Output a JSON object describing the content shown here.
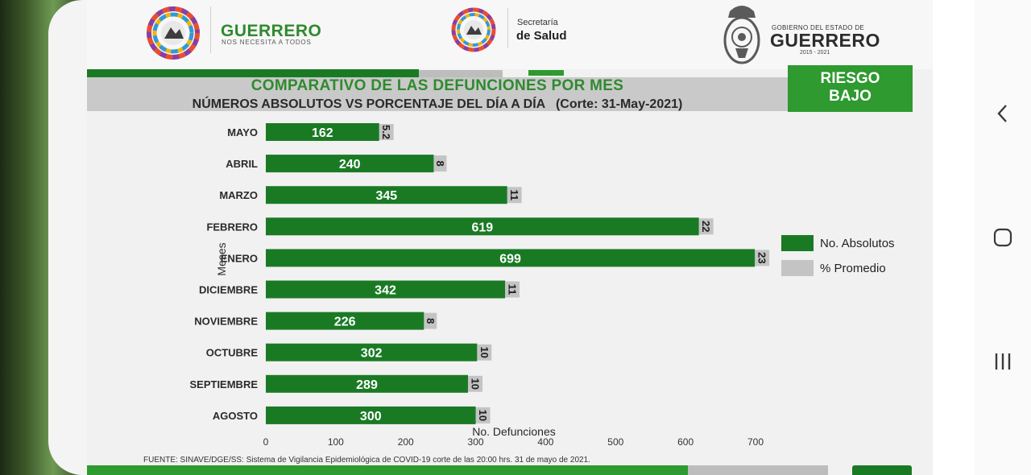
{
  "header": {
    "brand_title": "GUERRERO",
    "brand_subtitle": "NOS NECESITA A TODOS",
    "secretaria_small": "Secretaría",
    "secretaria_big": "de Salud",
    "gobierno_small": "GOBIERNO DEL ESTADO DE",
    "gobierno_big": "GUERRERO",
    "gobierno_years": "2015 - 2021"
  },
  "risk_badge": {
    "line1": "RIESGO",
    "line2": "BAJO"
  },
  "colors": {
    "absolutos": "#1a7a24",
    "promedio": "#c4c4c4",
    "title_green": "#2f8a2e",
    "badge_green": "#2e9a2f"
  },
  "nav": {
    "back_icon": "chevron-left-icon",
    "home_icon": "home-icon",
    "recents_icon": "recents-icon"
  },
  "source": "FUENTE: SINAVE/DGE/SS: Sistema de Vigilancia Epidemiológica de COVID-19 corte de las 20:00 hrs. 31 de mayo  de 2021.",
  "chart_data": {
    "type": "bar",
    "orientation": "horizontal",
    "title": "COMPARATIVO DE LAS DEFUNCIONES POR MES",
    "subtitle": "NÚMEROS ABSOLUTOS VS PORCENTAJE DEL DÍA A DÍA   (Corte: 31-May-2021)",
    "xlabel": "No. Defunciones",
    "ylabel": "Meses",
    "xlim": [
      0,
      700
    ],
    "xticks": [
      "0",
      "100",
      "200",
      "300",
      "400",
      "500",
      "600",
      "700"
    ],
    "grid": false,
    "legend_position": "right",
    "categories": [
      "MAYO",
      "ABRIL",
      "MARZO",
      "FEBRERO",
      "ENERO",
      "DICIEMBRE",
      "NOVIEMBRE",
      "OCTUBRE",
      "SEPTIEMBRE",
      "AGOSTO"
    ],
    "series": [
      {
        "name": "No. Absolutos",
        "values": [
          162,
          240,
          345,
          619,
          699,
          342,
          226,
          302,
          289,
          300
        ]
      },
      {
        "name": "% Promedio",
        "values": [
          5.2,
          8,
          11,
          22,
          23,
          11,
          8,
          10,
          10,
          10
        ],
        "labels": [
          "5.2",
          "8",
          "11",
          "22",
          "23",
          "11",
          "8",
          "10",
          "10",
          "10"
        ]
      }
    ]
  }
}
